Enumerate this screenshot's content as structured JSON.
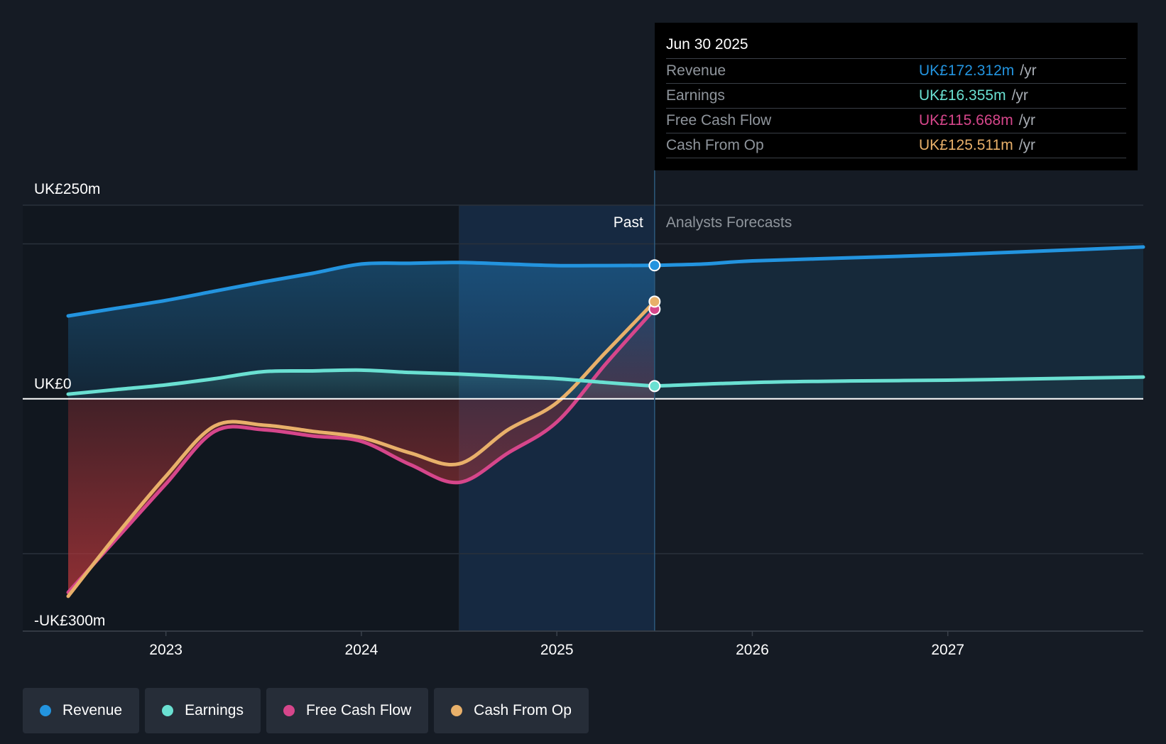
{
  "tooltip": {
    "date": "Jun 30 2025",
    "rows": [
      {
        "label": "Revenue",
        "value": "UK£172.312m",
        "unit": "/yr",
        "color": "#2394df"
      },
      {
        "label": "Earnings",
        "value": "UK£16.355m",
        "unit": "/yr",
        "color": "#6ae0d2"
      },
      {
        "label": "Free Cash Flow",
        "value": "UK£115.668m",
        "unit": "/yr",
        "color": "#d6468b"
      },
      {
        "label": "Cash From Op",
        "value": "UK£125.511m",
        "unit": "/yr",
        "color": "#e8b06a"
      }
    ]
  },
  "legend": [
    {
      "label": "Revenue",
      "color": "#2394df"
    },
    {
      "label": "Earnings",
      "color": "#6ae0d2"
    },
    {
      "label": "Free Cash Flow",
      "color": "#d6468b"
    },
    {
      "label": "Cash From Op",
      "color": "#e8b06a"
    }
  ],
  "chart_data": {
    "type": "line",
    "title": "",
    "y_unit": "UK£m",
    "ylim": [
      -300,
      250
    ],
    "xlim": [
      2022.5,
      2028
    ],
    "y_labels": [
      {
        "value": 250,
        "label": "UK£250m"
      },
      {
        "value": 0,
        "label": "UK£0"
      },
      {
        "value": -300,
        "label": "-UK£300m"
      }
    ],
    "x_ticks": [
      {
        "value": 2023,
        "label": "2023"
      },
      {
        "value": 2024,
        "label": "2024"
      },
      {
        "value": 2025,
        "label": "2025"
      },
      {
        "value": 2026,
        "label": "2026"
      },
      {
        "value": 2027,
        "label": "2027"
      }
    ],
    "past_label": "Past",
    "forecast_label": "Analysts Forecasts",
    "highlight_start": 2024.5,
    "divider_x": 2025.5,
    "series": [
      {
        "name": "Revenue",
        "color": "#2394df",
        "fill": true,
        "points": [
          [
            2022.5,
            107
          ],
          [
            2022.75,
            117
          ],
          [
            2023,
            127
          ],
          [
            2023.25,
            139
          ],
          [
            2023.5,
            151
          ],
          [
            2023.75,
            162
          ],
          [
            2024,
            174
          ],
          [
            2024.25,
            175
          ],
          [
            2024.5,
            176
          ],
          [
            2024.75,
            174
          ],
          [
            2025,
            172
          ],
          [
            2025.25,
            172
          ],
          [
            2025.5,
            172.3
          ]
        ],
        "forecast": [
          [
            2025.5,
            172.3
          ],
          [
            2025.75,
            174
          ],
          [
            2026,
            178
          ],
          [
            2026.5,
            182
          ],
          [
            2027,
            186
          ],
          [
            2027.5,
            191
          ],
          [
            2028,
            196
          ]
        ]
      },
      {
        "name": "Earnings",
        "color": "#6ae0d2",
        "fill": true,
        "points": [
          [
            2022.5,
            6
          ],
          [
            2022.75,
            12
          ],
          [
            2023,
            18
          ],
          [
            2023.25,
            26
          ],
          [
            2023.5,
            35
          ],
          [
            2023.75,
            36
          ],
          [
            2024,
            37
          ],
          [
            2024.25,
            34
          ],
          [
            2024.5,
            32
          ],
          [
            2024.75,
            29
          ],
          [
            2025,
            26
          ],
          [
            2025.25,
            21
          ],
          [
            2025.5,
            16.4
          ]
        ],
        "forecast": [
          [
            2025.5,
            16.4
          ],
          [
            2026,
            21
          ],
          [
            2026.5,
            23
          ],
          [
            2027,
            24
          ],
          [
            2027.5,
            26
          ],
          [
            2028,
            28
          ]
        ]
      },
      {
        "name": "Free Cash Flow",
        "color": "#d6468b",
        "fill": true,
        "points": [
          [
            2022.5,
            -250
          ],
          [
            2022.75,
            -180
          ],
          [
            2023,
            -110
          ],
          [
            2023.25,
            -42
          ],
          [
            2023.5,
            -40
          ],
          [
            2023.75,
            -48
          ],
          [
            2024,
            -55
          ],
          [
            2024.25,
            -85
          ],
          [
            2024.5,
            -108
          ],
          [
            2024.75,
            -70
          ],
          [
            2025,
            -30
          ],
          [
            2025.25,
            45
          ],
          [
            2025.5,
            115.7
          ]
        ]
      },
      {
        "name": "Cash From Op",
        "color": "#e8b06a",
        "fill": false,
        "points": [
          [
            2022.5,
            -255
          ],
          [
            2022.75,
            -175
          ],
          [
            2023,
            -100
          ],
          [
            2023.25,
            -35
          ],
          [
            2023.5,
            -34
          ],
          [
            2023.75,
            -42
          ],
          [
            2024,
            -50
          ],
          [
            2024.25,
            -70
          ],
          [
            2024.5,
            -84
          ],
          [
            2024.75,
            -40
          ],
          [
            2025,
            -5
          ],
          [
            2025.25,
            60
          ],
          [
            2025.5,
            125.5
          ]
        ]
      }
    ]
  }
}
